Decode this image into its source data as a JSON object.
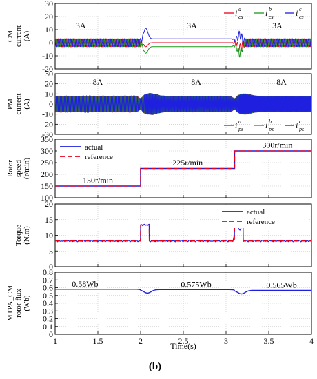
{
  "figure_label": "(b)",
  "x_axis": {
    "label": "Time(s)",
    "range": [
      1,
      4
    ],
    "ticks": [
      1,
      1.5,
      2,
      2.5,
      3,
      3.5,
      4
    ]
  },
  "colors": {
    "red": "#e8001c",
    "green": "#1a9a1a",
    "blue": "#1f1fe0"
  },
  "chart_data": [
    {
      "type": "line",
      "ylabel": [
        "CM",
        "current",
        "(A)"
      ],
      "ylim": [
        -20,
        30
      ],
      "yticks": [
        -20,
        -10,
        0,
        10,
        20,
        30
      ],
      "grid": true,
      "legend_position": "top-right",
      "legend": [
        {
          "sym": "i",
          "sub": "cs",
          "sup": "a",
          "color": "#e8001c"
        },
        {
          "sym": "i",
          "sub": "cs",
          "sup": "b",
          "color": "#1a9a1a"
        },
        {
          "sym": "i",
          "sub": "cs",
          "sup": "c",
          "color": "#1f1fe0"
        }
      ],
      "annotations": [
        {
          "text": "3A",
          "x": 1.3,
          "y": 11
        },
        {
          "text": "3A",
          "x": 2.6,
          "y": 11
        },
        {
          "text": "3A",
          "x": 3.6,
          "y": 11
        }
      ],
      "amplitude": 3,
      "segments": [
        {
          "t0": 1.0,
          "t1": 2.0,
          "state": "ac"
        },
        {
          "t0": 2.0,
          "t1": 3.1,
          "state": "dc",
          "values": {
            "red": 0,
            "green": -3,
            "blue": 3
          }
        },
        {
          "t0": 3.1,
          "t1": 4.0,
          "state": "ac"
        }
      ]
    },
    {
      "type": "line",
      "ylabel": [
        "PM",
        "current",
        "(A)"
      ],
      "ylim": [
        -30,
        30
      ],
      "yticks": [
        -30,
        -20,
        -10,
        0,
        10,
        20,
        30
      ],
      "grid": true,
      "legend_position": "bottom-right",
      "legend": [
        {
          "sym": "i",
          "sub": "ps",
          "sup": "a",
          "color": "#e8001c"
        },
        {
          "sym": "i",
          "sub": "ps",
          "sup": "b",
          "color": "#1a9a1a"
        },
        {
          "sym": "i",
          "sub": "ps",
          "sup": "c",
          "color": "#1f1fe0"
        }
      ],
      "annotations": [
        {
          "text": "8A",
          "x": 1.5,
          "y": 19
        },
        {
          "text": "8A",
          "x": 2.65,
          "y": 19
        },
        {
          "text": "8A",
          "x": 3.65,
          "y": 19
        }
      ],
      "amplitude": 8
    },
    {
      "type": "line",
      "ylabel": [
        "Rotor",
        "speed",
        "(r/min)"
      ],
      "ylim": [
        100,
        350
      ],
      "yticks": [
        100,
        150,
        200,
        250,
        300,
        350
      ],
      "grid": true,
      "legend_position": "top-left",
      "series": [
        {
          "name": "actual",
          "color": "#1f1fe0",
          "dash": false
        },
        {
          "name": "reference",
          "color": "#e8001c",
          "dash": true
        }
      ],
      "steps": [
        {
          "t0": 1.0,
          "t1": 2.0,
          "value": 150
        },
        {
          "t0": 2.0,
          "t1": 3.1,
          "value": 225
        },
        {
          "t0": 3.1,
          "t1": 4.0,
          "value": 300
        }
      ],
      "annotations": [
        {
          "text": "150r/min",
          "x": 1.5,
          "y": 163
        },
        {
          "text": "225r/min",
          "x": 2.55,
          "y": 238
        },
        {
          "text": "300r/min",
          "x": 3.6,
          "y": 313
        }
      ]
    },
    {
      "type": "line",
      "ylabel": [
        "Torque",
        "(N.m)"
      ],
      "ylim": [
        0,
        20
      ],
      "yticks": [
        0,
        5,
        10,
        15,
        20
      ],
      "grid": true,
      "legend_position": "top-right",
      "series": [
        {
          "name": "actual",
          "color": "#1f1fe0",
          "dash": false
        },
        {
          "name": "reference",
          "color": "#e8001c",
          "dash": true
        }
      ],
      "base_value": 8.2,
      "pulses": [
        {
          "t0": 2.0,
          "t1": 2.1,
          "value": 13.3
        },
        {
          "t0": 3.1,
          "t1": 3.2,
          "value": 13.5
        }
      ]
    },
    {
      "type": "line",
      "ylabel": [
        "MTPA_CM",
        "rotor flux",
        "(Wb)"
      ],
      "ylim": [
        0,
        0.8
      ],
      "yticks": [
        0,
        0.1,
        0.2,
        0.3,
        0.4,
        0.5,
        0.6,
        0.7,
        0.8
      ],
      "grid": true,
      "color": "#1f1fe0",
      "segments": [
        {
          "t0": 1.0,
          "t1": 2.0,
          "value": 0.58
        },
        {
          "t0": 2.0,
          "t1": 3.1,
          "value": 0.575
        },
        {
          "t0": 3.1,
          "t1": 4.0,
          "value": 0.565
        }
      ],
      "annotations": [
        {
          "text": "0.58Wb",
          "x": 1.35,
          "y": 0.615
        },
        {
          "text": "0.575Wb",
          "x": 2.65,
          "y": 0.61
        },
        {
          "text": "0.565Wb",
          "x": 3.65,
          "y": 0.6
        }
      ]
    }
  ]
}
